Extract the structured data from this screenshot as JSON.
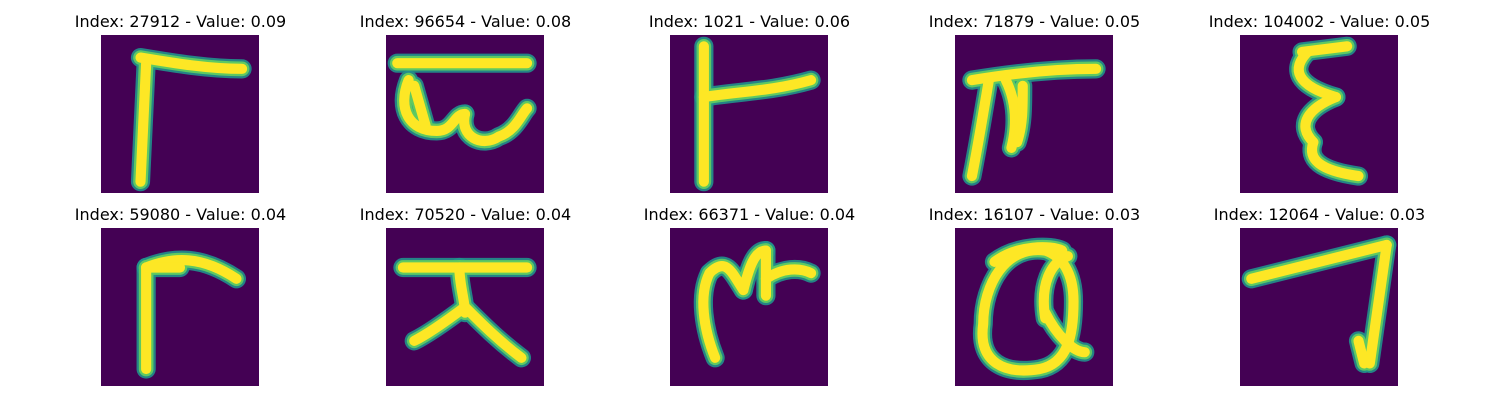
{
  "panels": [
    {
      "title": "Index: 27912 - Value: 0.09",
      "glyph": "gamma-like-stroke-image"
    },
    {
      "title": "Index: 96654 - Value: 0.08",
      "glyph": "scribbled-glyph-image"
    },
    {
      "title": "Index: 1021 - Value: 0.06",
      "glyph": "t-rotated-glyph-image"
    },
    {
      "title": "Index: 71879 - Value: 0.05",
      "glyph": "pi-like-glyph-image"
    },
    {
      "title": "Index: 104002 - Value: 0.05",
      "glyph": "xi-like-glyph-image"
    },
    {
      "title": "Index: 59080 - Value: 0.04",
      "glyph": "gamma-like-stroke-image"
    },
    {
      "title": "Index: 70520 - Value: 0.04",
      "glyph": "tee-legs-glyph-image"
    },
    {
      "title": "Index: 66371 - Value: 0.04",
      "glyph": "m-like-glyph-image"
    },
    {
      "title": "Index: 16107 - Value: 0.03",
      "glyph": "a-loop-glyph-image"
    },
    {
      "title": "Index: 12064 - Value: 0.03",
      "glyph": "seven-like-glyph-image"
    }
  ],
  "colors": {
    "background": "#440154",
    "stroke_core": "#fde725",
    "stroke_mid": "#5ec962",
    "stroke_edge": "#21918c"
  }
}
